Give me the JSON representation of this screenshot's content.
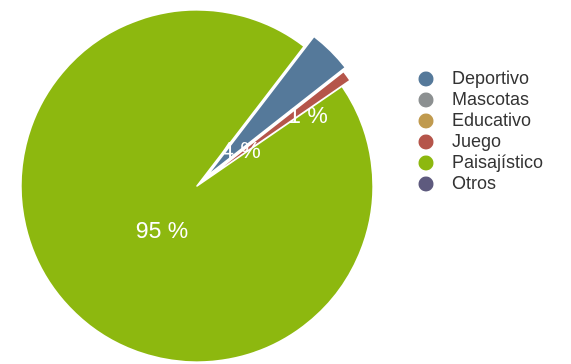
{
  "chart_data": {
    "type": "pie",
    "title": "",
    "labels": [
      "Deportivo",
      "Mascotas",
      "Educativo",
      "Juego",
      "Paisajístico",
      "Otros"
    ],
    "values": [
      4,
      0,
      0,
      1,
      95,
      0
    ],
    "value_labels": [
      "4 %",
      "",
      "",
      "1 %",
      "95 %",
      ""
    ],
    "colors": [
      "#55799a",
      "#8c9091",
      "#c09a4e",
      "#b5554a",
      "#8db80f",
      "#5e5a7e"
    ],
    "legend_position": "right"
  }
}
